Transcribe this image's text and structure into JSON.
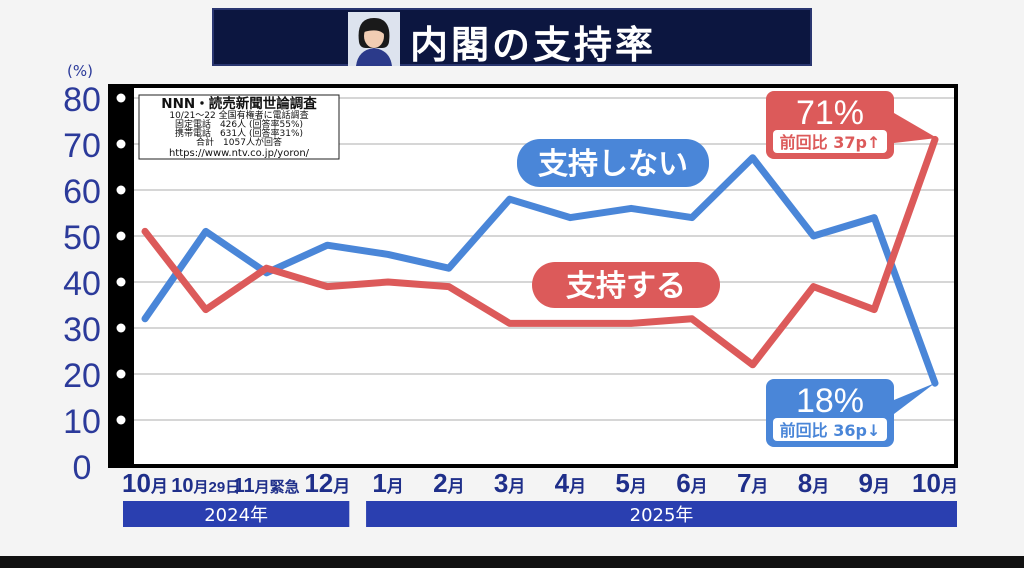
{
  "header": {
    "title": "内閣の支持率",
    "avatar_icon": "person-portrait"
  },
  "source_box": {
    "lines": [
      "NNN・読売新聞世論調査",
      "10/21～22 全国有権者に電話調査",
      "固定電話　426人 (回答率55%)",
      "携帯電話　631人 (回答率31%)",
      "合計　1057人が回答",
      "https://www.ntv.co.jp/yoron/"
    ]
  },
  "chart_data": {
    "type": "line",
    "y_unit": "(%)",
    "ylim": [
      0,
      80
    ],
    "yticks": [
      "0",
      "10",
      "20",
      "30",
      "40",
      "50",
      "60",
      "70",
      "80"
    ],
    "categories": [
      "10月",
      "10月29日",
      "11月緊急",
      "12月",
      "1月",
      "2月",
      "3月",
      "4月",
      "5月",
      "6月",
      "7月",
      "8月",
      "9月",
      "10月"
    ],
    "year_groups": [
      {
        "label": "2024年",
        "start": 0,
        "end": 3
      },
      {
        "label": "2025年",
        "start": 4,
        "end": 13
      }
    ],
    "series": [
      {
        "name": "支持しない",
        "color": "#4a86d8",
        "values": [
          32,
          51,
          42,
          48,
          46,
          43,
          58,
          54,
          56,
          54,
          67,
          50,
          54,
          18
        ]
      },
      {
        "name": "支持する",
        "color": "#dc5a5a",
        "values": [
          51,
          34,
          43,
          39,
          40,
          39,
          31,
          31,
          31,
          32,
          22,
          39,
          34,
          71
        ]
      }
    ],
    "callouts": [
      {
        "series": 1,
        "value": "71%",
        "note": "前回比 37p",
        "arrow": "↑"
      },
      {
        "series": 0,
        "value": "18%",
        "note": "前回比 36p",
        "arrow": "↓"
      }
    ],
    "grid": true
  }
}
